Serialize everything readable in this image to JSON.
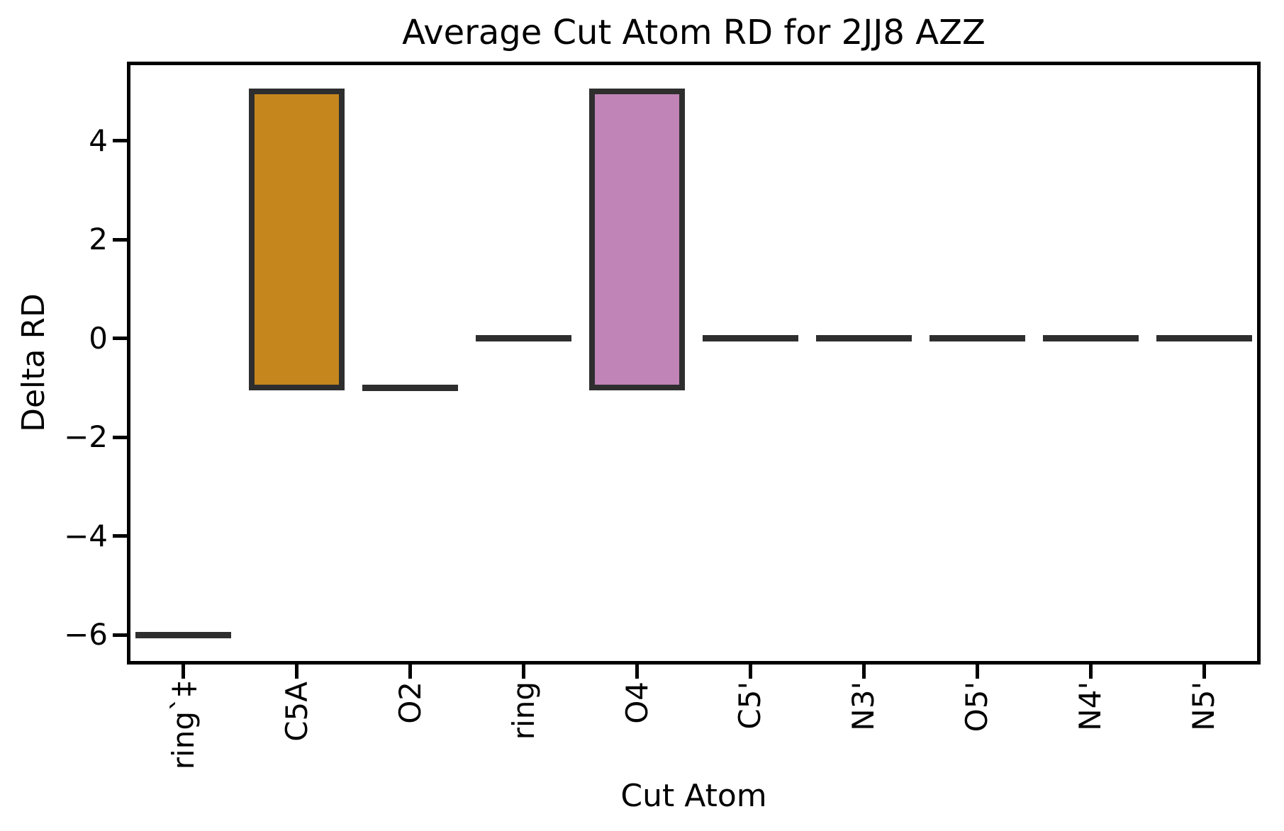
{
  "title": "Average Cut Atom RD for 2JJ8 AZZ",
  "chart_data": {
    "type": "bar",
    "title": "Average Cut Atom RD for 2JJ8 AZZ",
    "xlabel": "Cut Atom",
    "ylabel": "Delta RD",
    "categories": [
      "ring`‡",
      "C5A",
      "O2",
      "ring",
      "O4",
      "C5'",
      "N3'",
      "O5'",
      "N4'",
      "N5'"
    ],
    "bars": [
      {
        "category": "ring`‡",
        "from": -6,
        "to": -6,
        "fill": null
      },
      {
        "category": "C5A",
        "from": -1,
        "to": 5,
        "fill": "#c5861e"
      },
      {
        "category": "O2",
        "from": -1,
        "to": -1,
        "fill": null
      },
      {
        "category": "ring",
        "from": 0,
        "to": 0,
        "fill": null
      },
      {
        "category": "O4",
        "from": -1,
        "to": 5,
        "fill": "#c084b7"
      },
      {
        "category": "C5'",
        "from": 0,
        "to": 0,
        "fill": null
      },
      {
        "category": "N3'",
        "from": 0,
        "to": 0,
        "fill": null
      },
      {
        "category": "O5'",
        "from": 0,
        "to": 0,
        "fill": null
      },
      {
        "category": "N4'",
        "from": 0,
        "to": 0,
        "fill": null
      },
      {
        "category": "N5'",
        "from": 0,
        "to": 0,
        "fill": null
      }
    ],
    "yticks": [
      {
        "value": 4,
        "label": "4"
      },
      {
        "value": 2,
        "label": "2"
      },
      {
        "value": 0,
        "label": "0"
      },
      {
        "value": -2,
        "label": "−2"
      },
      {
        "value": -4,
        "label": "−4"
      },
      {
        "value": -6,
        "label": "−6"
      }
    ],
    "ylim": [
      -6.6,
      5.6
    ],
    "grid": false,
    "legend": null,
    "bar_relative_width": 0.845,
    "colors": {
      "bar_edge": "#2e2e2e",
      "spine": "#000000",
      "text": "#000000",
      "bar_c5a": "#c5861e",
      "bar_o4": "#c084b7"
    }
  }
}
